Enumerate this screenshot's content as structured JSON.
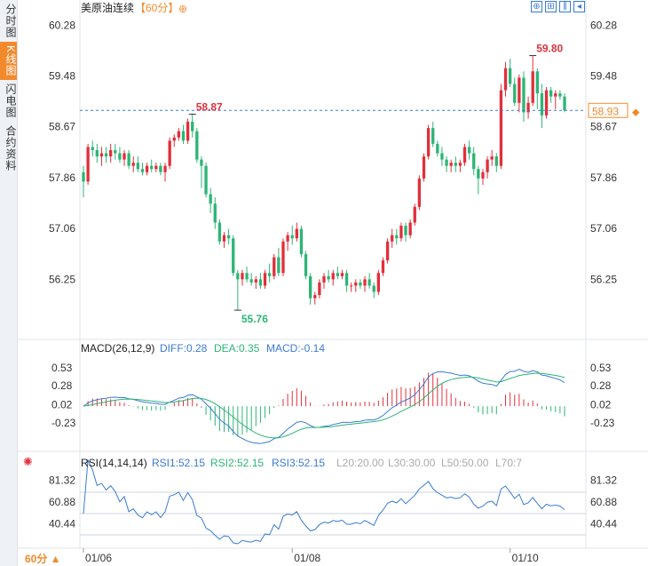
{
  "sidebar": {
    "tabs": [
      {
        "label": "分时图",
        "active": false
      },
      {
        "label": "K线图",
        "active": true
      },
      {
        "label": "闪电图",
        "active": false
      },
      {
        "label": "合约资料",
        "active": false
      }
    ]
  },
  "header": {
    "title": "美原油连续",
    "period_tag": "【60分】",
    "add_icon": "plus-circle-icon",
    "toolbar_icons": [
      "expand-icon",
      "fit-icon",
      "kline-mode-icon",
      "back-icon"
    ]
  },
  "footer": {
    "period_button": "60分 ▲",
    "date_labels": [
      "01/06",
      "01/08",
      "01/10"
    ]
  },
  "colors": {
    "up": "#e0303c",
    "down": "#2db576",
    "diff": "#3a7bd5",
    "dea": "#2db576",
    "rsi": "#3a7bd5",
    "price_line": "#3a7bd5",
    "price_tag": "#f28a2c"
  },
  "chart_data": [
    {
      "type": "candlestick",
      "title": "美原油连续【60分】",
      "y_ticks": [
        "60.28",
        "59.48",
        "58.67",
        "57.86",
        "57.06",
        "56.25"
      ],
      "ylim": [
        55.55,
        60.4
      ],
      "annotations": {
        "high_1": "58.87",
        "low": "55.76",
        "high_2": "59.80"
      },
      "current_price": "58.93",
      "dates": [
        "01/06",
        "01/08",
        "01/10"
      ],
      "ohlc": [
        [
          57.95,
          58.05,
          57.55,
          57.8
        ],
        [
          57.8,
          58.4,
          57.75,
          58.35
        ],
        [
          58.35,
          58.45,
          58.2,
          58.3
        ],
        [
          58.3,
          58.4,
          58.1,
          58.2
        ],
        [
          58.2,
          58.35,
          58.05,
          58.25
        ],
        [
          58.25,
          58.35,
          58.1,
          58.2
        ],
        [
          58.2,
          58.4,
          58.1,
          58.3
        ],
        [
          58.3,
          58.4,
          58.15,
          58.25
        ],
        [
          58.25,
          58.35,
          58.1,
          58.15
        ],
        [
          58.15,
          58.3,
          58.05,
          58.25
        ],
        [
          58.25,
          58.3,
          58.0,
          58.05
        ],
        [
          58.05,
          58.2,
          57.95,
          58.1
        ],
        [
          58.1,
          58.2,
          57.95,
          58.0
        ],
        [
          58.0,
          58.1,
          57.9,
          57.95
        ],
        [
          57.95,
          58.1,
          57.9,
          58.05
        ],
        [
          58.05,
          58.15,
          57.95,
          58.0
        ],
        [
          58.0,
          58.1,
          57.95,
          58.05
        ],
        [
          58.05,
          58.1,
          57.9,
          57.95
        ],
        [
          57.95,
          58.1,
          57.8,
          58.05
        ],
        [
          58.05,
          58.5,
          58.0,
          58.45
        ],
        [
          58.45,
          58.55,
          58.35,
          58.5
        ],
        [
          58.5,
          58.65,
          58.45,
          58.6
        ],
        [
          58.6,
          58.7,
          58.4,
          58.45
        ],
        [
          58.45,
          58.8,
          58.4,
          58.75
        ],
        [
          58.75,
          58.87,
          58.5,
          58.6
        ],
        [
          58.6,
          58.65,
          58.1,
          58.15
        ],
        [
          58.15,
          58.2,
          57.7,
          58.05
        ],
        [
          58.05,
          58.1,
          57.55,
          57.6
        ],
        [
          57.6,
          57.7,
          57.3,
          57.45
        ],
        [
          57.45,
          57.55,
          57.05,
          57.15
        ],
        [
          57.15,
          57.2,
          56.8,
          56.85
        ],
        [
          56.85,
          57.0,
          56.75,
          56.95
        ],
        [
          56.95,
          57.05,
          56.8,
          56.9
        ],
        [
          56.9,
          56.95,
          56.3,
          56.35
        ],
        [
          56.35,
          56.4,
          55.76,
          56.25
        ],
        [
          56.25,
          56.4,
          56.15,
          56.35
        ],
        [
          56.35,
          56.45,
          56.2,
          56.25
        ],
        [
          56.25,
          56.35,
          56.15,
          56.2
        ],
        [
          56.2,
          56.3,
          56.1,
          56.25
        ],
        [
          56.25,
          56.35,
          56.1,
          56.15
        ],
        [
          56.15,
          56.4,
          56.1,
          56.35
        ],
        [
          56.35,
          56.5,
          56.2,
          56.3
        ],
        [
          56.3,
          56.65,
          56.25,
          56.6
        ],
        [
          56.6,
          56.75,
          56.3,
          56.35
        ],
        [
          56.35,
          56.9,
          56.3,
          56.85
        ],
        [
          56.85,
          57.0,
          56.7,
          56.95
        ],
        [
          56.95,
          57.1,
          56.8,
          56.9
        ],
        [
          56.9,
          57.15,
          56.85,
          57.05
        ],
        [
          57.05,
          57.1,
          56.6,
          56.65
        ],
        [
          56.65,
          56.7,
          56.25,
          56.3
        ],
        [
          56.3,
          56.35,
          55.85,
          55.95
        ],
        [
          55.95,
          56.05,
          55.85,
          56.0
        ],
        [
          56.0,
          56.25,
          55.95,
          56.2
        ],
        [
          56.2,
          56.35,
          56.1,
          56.3
        ],
        [
          56.3,
          56.4,
          56.2,
          56.25
        ],
        [
          56.25,
          56.4,
          56.15,
          56.35
        ],
        [
          56.35,
          56.45,
          56.25,
          56.3
        ],
        [
          56.3,
          56.4,
          56.25,
          56.35
        ],
        [
          56.35,
          56.4,
          56.05,
          56.15
        ],
        [
          56.15,
          56.2,
          56.05,
          56.15
        ],
        [
          56.15,
          56.25,
          56.05,
          56.2
        ],
        [
          56.2,
          56.25,
          56.1,
          56.15
        ],
        [
          56.15,
          56.3,
          56.05,
          56.25
        ],
        [
          56.25,
          56.35,
          56.1,
          56.15
        ],
        [
          56.15,
          56.2,
          55.95,
          56.05
        ],
        [
          56.05,
          56.4,
          56.0,
          56.35
        ],
        [
          56.35,
          56.6,
          56.3,
          56.55
        ],
        [
          56.55,
          56.9,
          56.5,
          56.85
        ],
        [
          56.85,
          57.05,
          56.75,
          56.95
        ],
        [
          56.95,
          57.05,
          56.8,
          56.9
        ],
        [
          56.9,
          57.15,
          56.85,
          57.1
        ],
        [
          57.1,
          57.15,
          56.85,
          56.95
        ],
        [
          56.95,
          57.2,
          56.9,
          57.15
        ],
        [
          57.15,
          57.45,
          57.1,
          57.4
        ],
        [
          57.4,
          57.9,
          57.35,
          57.85
        ],
        [
          57.85,
          58.25,
          57.8,
          58.2
        ],
        [
          58.2,
          58.7,
          58.15,
          58.65
        ],
        [
          58.65,
          58.75,
          58.35,
          58.4
        ],
        [
          58.4,
          58.45,
          58.2,
          58.25
        ],
        [
          58.25,
          58.35,
          58.05,
          58.15
        ],
        [
          58.15,
          58.2,
          57.95,
          58.05
        ],
        [
          58.05,
          58.15,
          57.95,
          58.1
        ],
        [
          58.1,
          58.2,
          57.95,
          58.05
        ],
        [
          58.05,
          58.15,
          57.95,
          58.1
        ],
        [
          58.1,
          58.4,
          58.05,
          58.35
        ],
        [
          58.35,
          58.45,
          58.15,
          58.25
        ],
        [
          58.25,
          58.35,
          57.9,
          58.0
        ],
        [
          58.0,
          58.05,
          57.6,
          57.85
        ],
        [
          57.85,
          58.0,
          57.75,
          57.95
        ],
        [
          57.95,
          58.2,
          57.85,
          58.15
        ],
        [
          58.15,
          58.3,
          58.05,
          58.2
        ],
        [
          58.2,
          58.25,
          57.95,
          58.05
        ],
        [
          58.05,
          59.35,
          58.0,
          59.25
        ],
        [
          59.25,
          59.7,
          59.15,
          59.6
        ],
        [
          59.6,
          59.75,
          59.3,
          59.35
        ],
        [
          59.35,
          59.45,
          59.0,
          59.05
        ],
        [
          59.05,
          59.5,
          58.9,
          59.45
        ],
        [
          59.45,
          59.55,
          58.75,
          58.9
        ],
        [
          58.9,
          59.15,
          58.8,
          59.05
        ],
        [
          59.05,
          59.8,
          59.0,
          59.55
        ],
        [
          59.55,
          59.6,
          58.95,
          59.2
        ],
        [
          59.2,
          59.35,
          58.65,
          58.85
        ],
        [
          58.85,
          59.3,
          58.8,
          59.25
        ],
        [
          59.25,
          59.3,
          59.05,
          59.15
        ],
        [
          59.15,
          59.25,
          58.95,
          59.2
        ],
        [
          59.2,
          59.25,
          59.1,
          59.15
        ],
        [
          59.15,
          59.2,
          58.9,
          58.93
        ]
      ]
    },
    {
      "type": "macd",
      "label": "MACD(26,12,9)",
      "values_text": {
        "diff": "DIFF:0.28",
        "dea": "DEA:0.35",
        "macd": "MACD:-0.14"
      },
      "y_ticks": [
        "0.53",
        "0.28",
        "0.02",
        "-0.23"
      ],
      "ylim": [
        -0.5,
        0.65
      ]
    },
    {
      "type": "rsi",
      "label": "RSI(14,14,14)",
      "values_text": [
        "RSI1:52.15",
        "RSI2:52.15",
        "RSI3:52.15"
      ],
      "levels_text": [
        "L20:20.00",
        "L30:30.00",
        "L50:50.00",
        "L70:7"
      ],
      "y_ticks": [
        "81.32",
        "60.88",
        "40.44"
      ],
      "ylim": [
        20,
        90
      ]
    }
  ]
}
